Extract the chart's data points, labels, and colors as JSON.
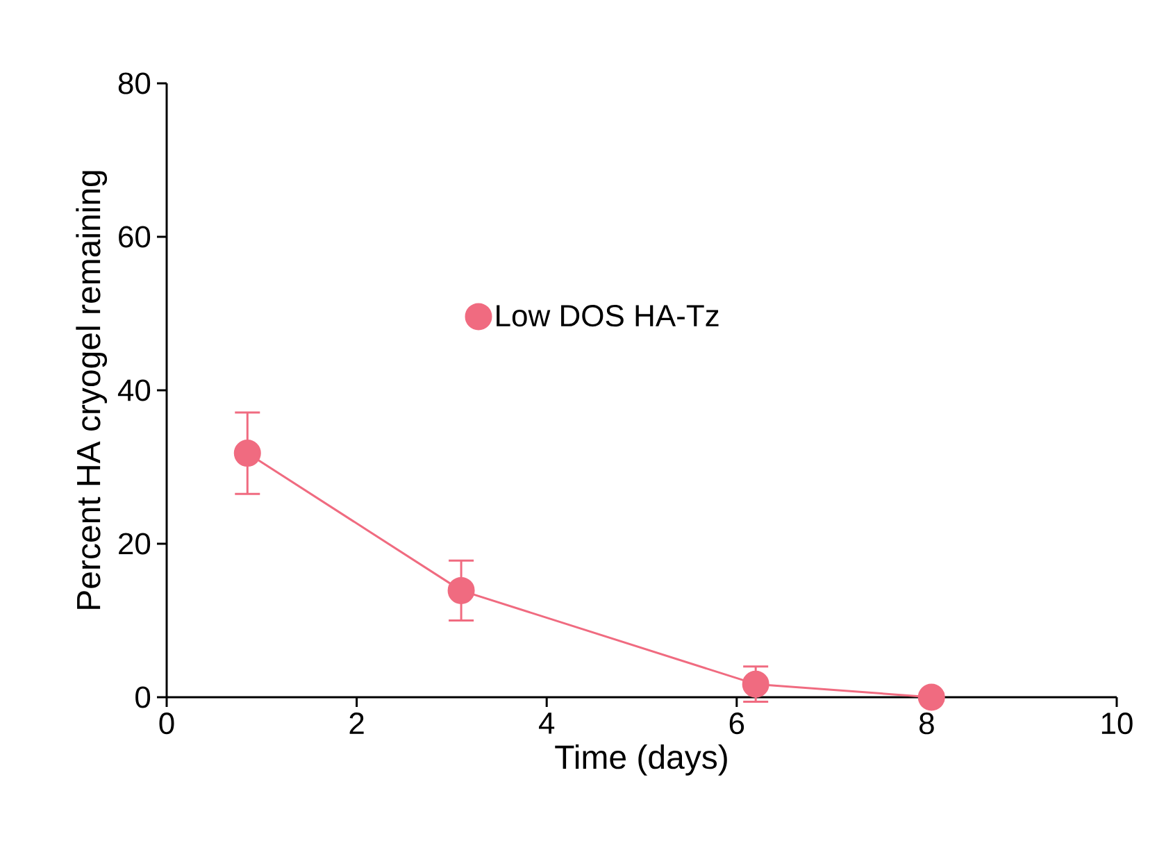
{
  "chart_data": {
    "type": "line",
    "xlabel": "Time (days)",
    "ylabel": "Percent HA cryogel remaining",
    "x": [
      0.85,
      3.1,
      6.2,
      8.05
    ],
    "series": [
      {
        "name": "Low DOS HA-Tz",
        "color": "#f06b80",
        "values": [
          31.8,
          13.9,
          1.7,
          0
        ],
        "errors": [
          5.3,
          3.9,
          2.3,
          0.5
        ]
      }
    ],
    "xlim": [
      0,
      10
    ],
    "ylim": [
      0,
      80
    ],
    "xticks": [
      0,
      2,
      4,
      6,
      8,
      10
    ],
    "yticks": [
      0,
      20,
      40,
      60,
      80
    ],
    "grid": false,
    "legend": "center",
    "marker": "circle",
    "line_style": "solid"
  }
}
